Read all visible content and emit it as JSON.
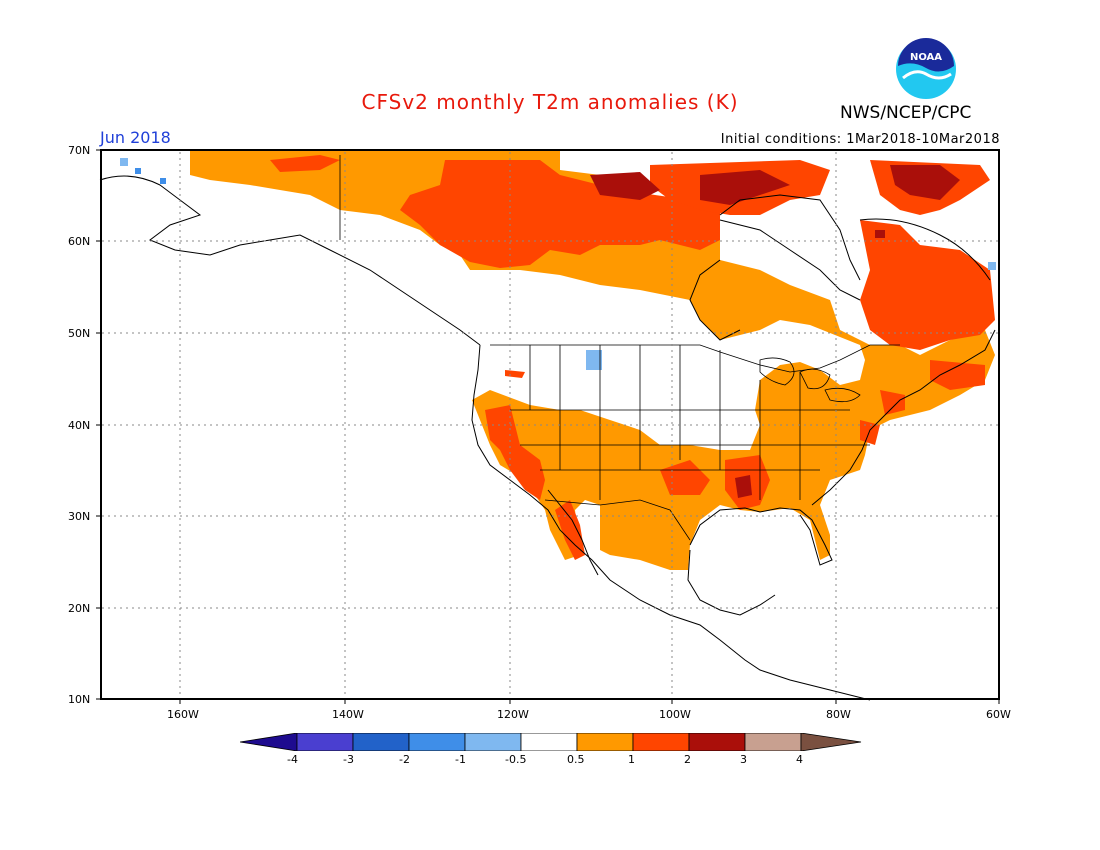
{
  "title": "CFSv2 monthly T2m anomalies (K)",
  "agency": "NWS/NCEP/CPC",
  "logo_text": "NOAA",
  "valid_month": "Jun 2018",
  "initial_conditions": "Initial conditions: 1Mar2018-10Mar2018",
  "lat_labels": [
    "70N",
    "60N",
    "50N",
    "40N",
    "30N",
    "20N",
    "10N"
  ],
  "lon_labels": [
    "160W",
    "140W",
    "120W",
    "100W",
    "80W",
    "60W"
  ],
  "colorbar": {
    "labels": [
      "-4",
      "-3",
      "-2",
      "-1",
      "-0.5",
      "0.5",
      "1",
      "2",
      "3",
      "4"
    ],
    "colors": [
      "#1e0b8f",
      "#4a3fd0",
      "#2262c9",
      "#3f8ee8",
      "#7fb8f0",
      "#ffffff",
      "#ff9900",
      "#ff4500",
      "#aa0f0a",
      "#c8a090",
      "#7a5040"
    ]
  },
  "colors": {
    "title": "#e8190c",
    "month": "#1f3fd8",
    "warm_weak": "#ff9900",
    "warm_mid": "#ff4500",
    "warm_strong": "#aa0f0a",
    "cool_weak": "#7fb8f0"
  }
}
